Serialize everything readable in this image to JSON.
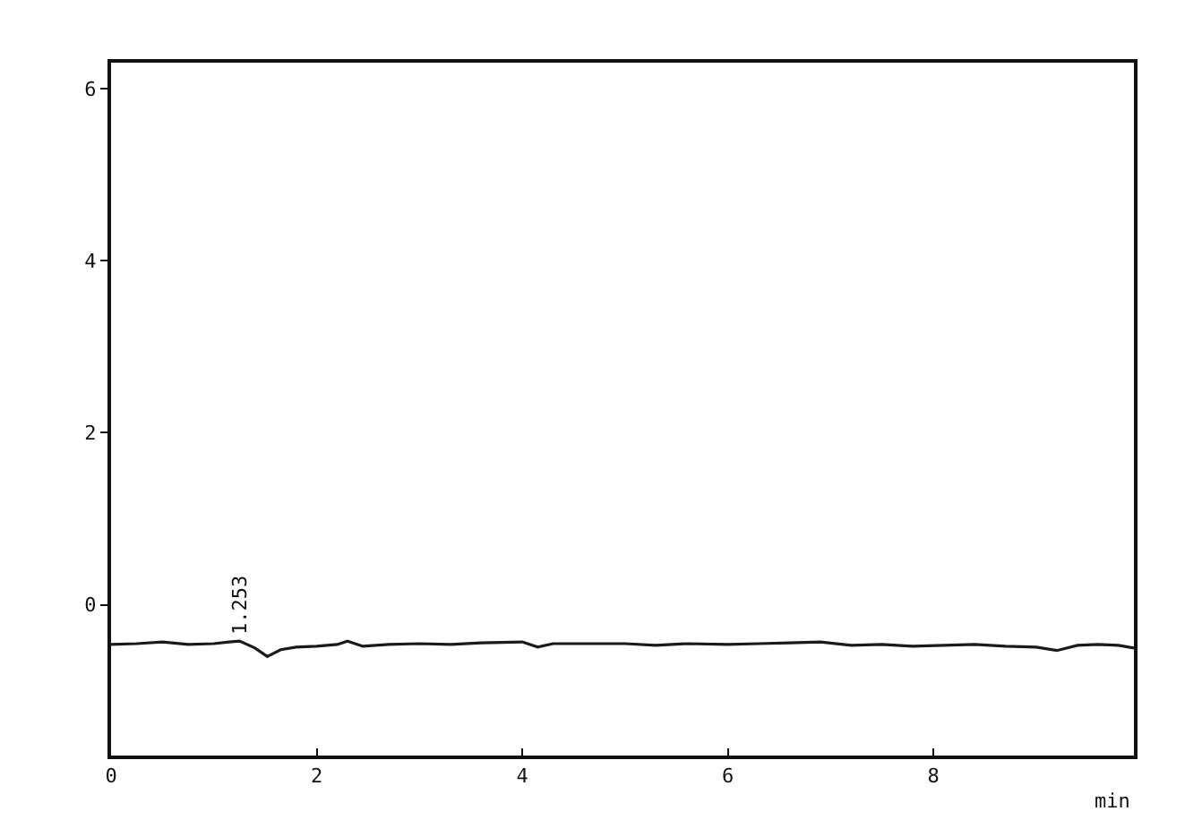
{
  "chart_data": {
    "type": "line",
    "xlabel": "min",
    "x": [
      0,
      0.25,
      0.5,
      0.75,
      1.0,
      1.15,
      1.25,
      1.4,
      1.52,
      1.65,
      1.8,
      2.0,
      2.2,
      2.3,
      2.45,
      2.7,
      3.0,
      3.3,
      3.6,
      4.0,
      4.15,
      4.3,
      4.6,
      5.0,
      5.3,
      5.6,
      6.0,
      6.3,
      6.6,
      6.9,
      7.2,
      7.5,
      7.8,
      8.1,
      8.4,
      8.7,
      9.0,
      9.2,
      9.4,
      9.6,
      9.8,
      9.95
    ],
    "values": [
      -0.46,
      -0.45,
      -0.43,
      -0.46,
      -0.45,
      -0.43,
      -0.42,
      -0.5,
      -0.6,
      -0.52,
      -0.49,
      -0.48,
      -0.46,
      -0.42,
      -0.48,
      -0.46,
      -0.45,
      -0.46,
      -0.44,
      -0.43,
      -0.49,
      -0.45,
      -0.45,
      -0.45,
      -0.47,
      -0.45,
      -0.46,
      -0.45,
      -0.44,
      -0.43,
      -0.47,
      -0.46,
      -0.48,
      -0.47,
      -0.46,
      -0.48,
      -0.49,
      -0.53,
      -0.47,
      -0.46,
      -0.47,
      -0.5
    ],
    "color": "#1a1a1a",
    "line_style": "solid",
    "marker": "none",
    "xlim": [
      0,
      9.95
    ],
    "ylim": [
      -1.75,
      6.3
    ],
    "xticks": [
      0,
      2,
      4,
      6,
      8
    ],
    "yticks": [
      0,
      2,
      4,
      6
    ],
    "annotations": [
      {
        "text": "1.253",
        "x": 1.253,
        "y": -0.42
      }
    ]
  }
}
